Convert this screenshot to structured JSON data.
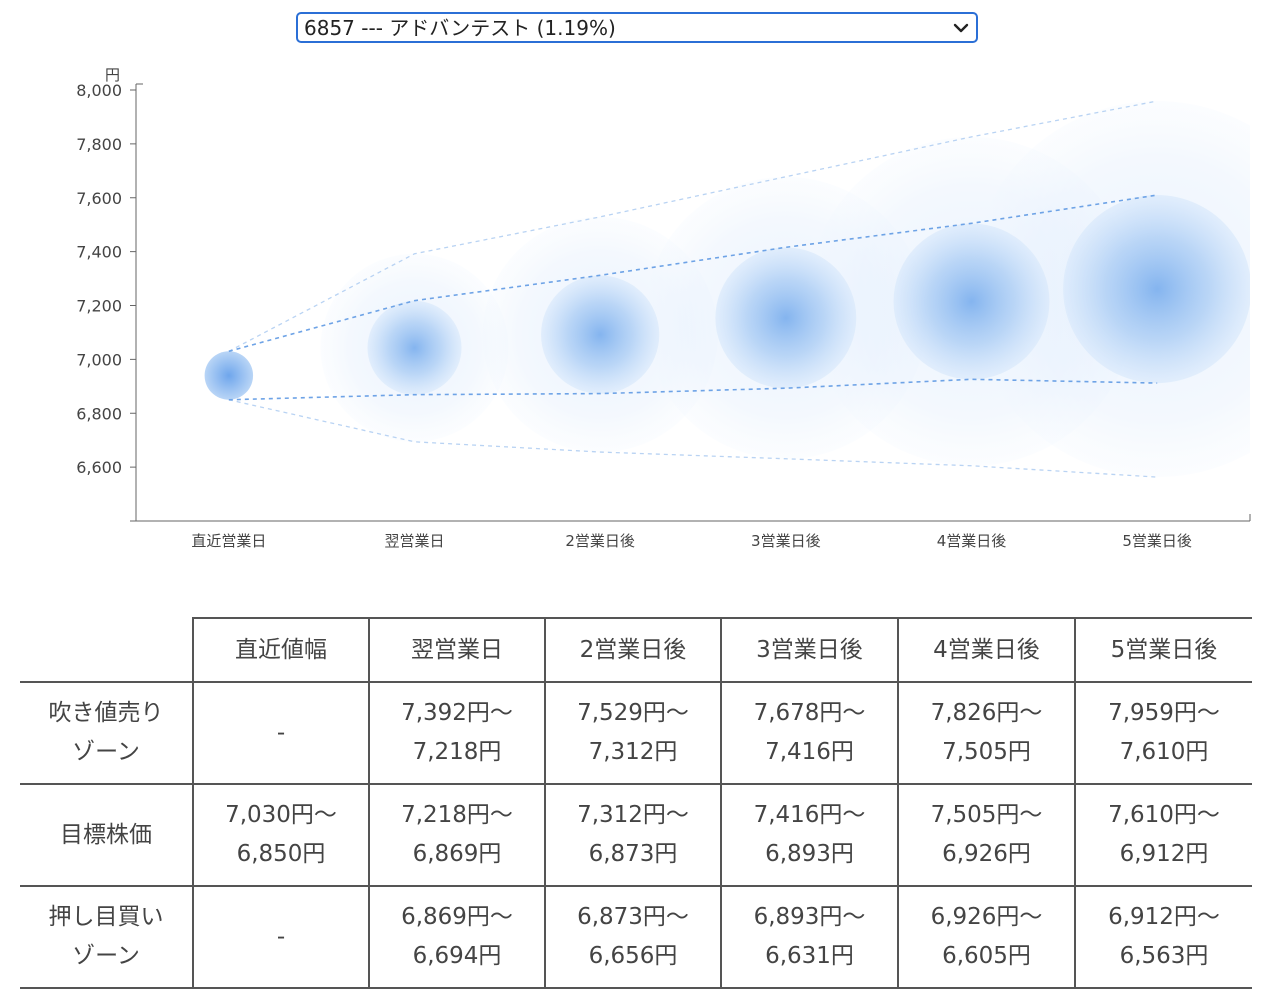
{
  "selector": {
    "value": "6857 --- アドバンテスト (1.19%)"
  },
  "chart_data": {
    "type": "bubble-band",
    "unit": "円",
    "ylim": [
      6400,
      8000
    ],
    "yticks": [
      6600,
      6800,
      7000,
      7200,
      7400,
      7600,
      7800,
      8000
    ],
    "ytick_labels": [
      "6,600",
      "6,800",
      "7,000",
      "7,200",
      "7,400",
      "7,600",
      "7,800",
      "8,000"
    ],
    "categories": [
      "直近営業日",
      "翌営業日",
      "2営業日後",
      "3営業日後",
      "4営業日後",
      "5営業日後"
    ],
    "center": [
      6940,
      7043,
      7092,
      7154,
      7215,
      7261
    ],
    "target_high": [
      7030,
      7218,
      7312,
      7416,
      7505,
      7610
    ],
    "target_low": [
      6850,
      6869,
      6873,
      6893,
      6926,
      6912
    ],
    "outer_high": [
      7030,
      7392,
      7529,
      7678,
      7826,
      7959
    ],
    "outer_low": [
      6850,
      6694,
      6656,
      6631,
      6605,
      6563
    ],
    "accent_color": "#2f7fe0",
    "band_color": "#cfe2fb"
  },
  "table": {
    "headers": [
      "",
      "直近値幅",
      "翌営業日",
      "2営業日後",
      "3営業日後",
      "4営業日後",
      "5営業日後"
    ],
    "rows": [
      {
        "label": [
          "吹き値売り",
          "ゾーン"
        ],
        "cells": [
          [
            "-"
          ],
          [
            "7,392円〜",
            "7,218円"
          ],
          [
            "7,529円〜",
            "7,312円"
          ],
          [
            "7,678円〜",
            "7,416円"
          ],
          [
            "7,826円〜",
            "7,505円"
          ],
          [
            "7,959円〜",
            "7,610円"
          ]
        ]
      },
      {
        "label": [
          "目標株価"
        ],
        "cells": [
          [
            "7,030円〜",
            "6,850円"
          ],
          [
            "7,218円〜",
            "6,869円"
          ],
          [
            "7,312円〜",
            "6,873円"
          ],
          [
            "7,416円〜",
            "6,893円"
          ],
          [
            "7,505円〜",
            "6,926円"
          ],
          [
            "7,610円〜",
            "6,912円"
          ]
        ]
      },
      {
        "label": [
          "押し目買い",
          "ゾーン"
        ],
        "cells": [
          [
            "-"
          ],
          [
            "6,869円〜",
            "6,694円"
          ],
          [
            "6,873円〜",
            "6,656円"
          ],
          [
            "6,893円〜",
            "6,631円"
          ],
          [
            "6,926円〜",
            "6,605円"
          ],
          [
            "6,912円〜",
            "6,563円"
          ]
        ]
      }
    ]
  }
}
